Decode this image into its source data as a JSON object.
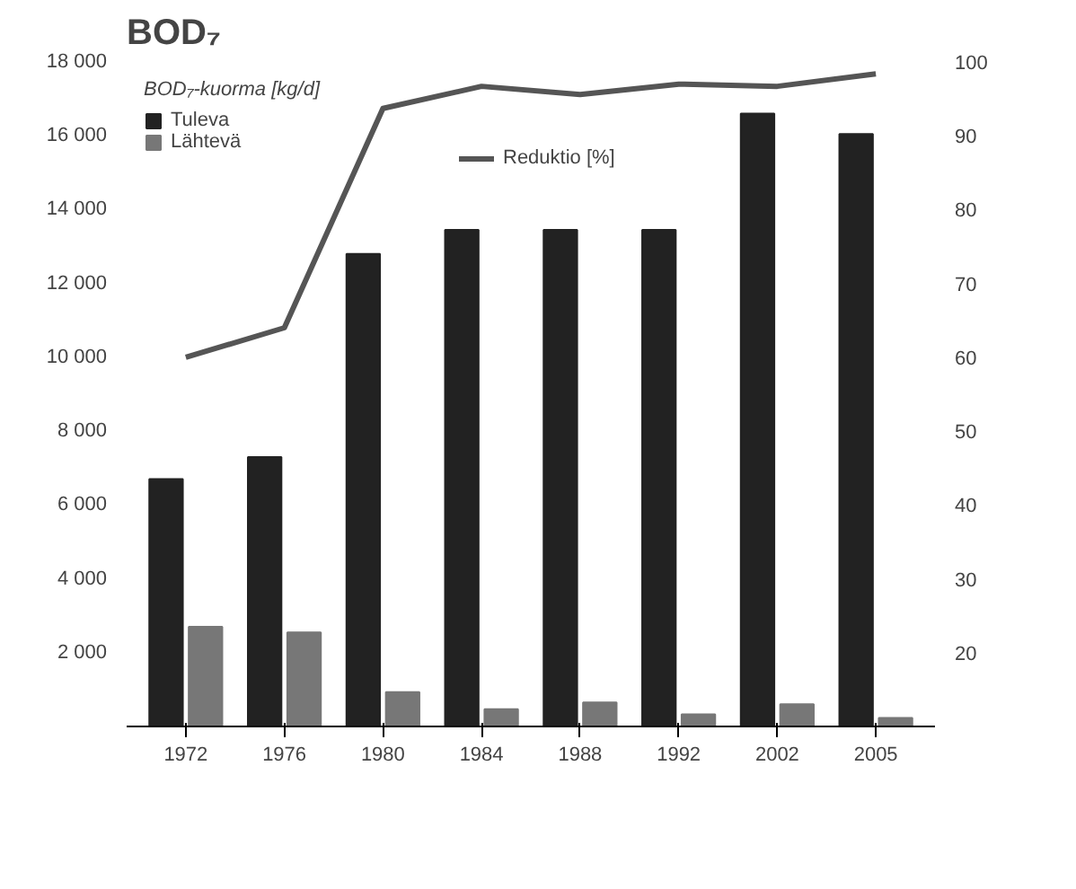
{
  "chart_data": {
    "type": "bar",
    "title": "BOD₇",
    "legend_title": "BOD₇-kuorma [kg/d]",
    "categories": [
      "1972",
      "1976",
      "1980",
      "1984",
      "1988",
      "1992",
      "2002",
      "2005"
    ],
    "series": [
      {
        "name": "Tuleva",
        "color": "#222222",
        "values": [
          6700,
          7300,
          12800,
          13450,
          13450,
          13450,
          16600,
          16050
        ]
      },
      {
        "name": "Lähtevä",
        "color": "#777777",
        "values": [
          2700,
          2550,
          930,
          470,
          650,
          330,
          600,
          230
        ]
      },
      {
        "name": "Reduktio [%]",
        "color": "#555555",
        "type": "line",
        "axis": "y2",
        "values": [
          60,
          64,
          93.7,
          96.7,
          95.6,
          97,
          96.7,
          98.4
        ]
      }
    ],
    "ylim": [
      0,
      18000
    ],
    "yticks": [
      {
        "value": 2000,
        "label": "2 000"
      },
      {
        "value": 4000,
        "label": "4 000"
      },
      {
        "value": 6000,
        "label": "6 000"
      },
      {
        "value": 8000,
        "label": "8 000"
      },
      {
        "value": 10000,
        "label": "10 000"
      },
      {
        "value": 12000,
        "label": "12 000"
      },
      {
        "value": 14000,
        "label": "14 000"
      },
      {
        "value": 16000,
        "label": "16 000"
      },
      {
        "value": 18000,
        "label": "18 000"
      }
    ],
    "y2lim": [
      10,
      100
    ],
    "y2ticks": [
      20,
      30,
      40,
      50,
      60,
      70,
      80,
      90,
      100
    ],
    "legend": "top",
    "grid": false
  }
}
